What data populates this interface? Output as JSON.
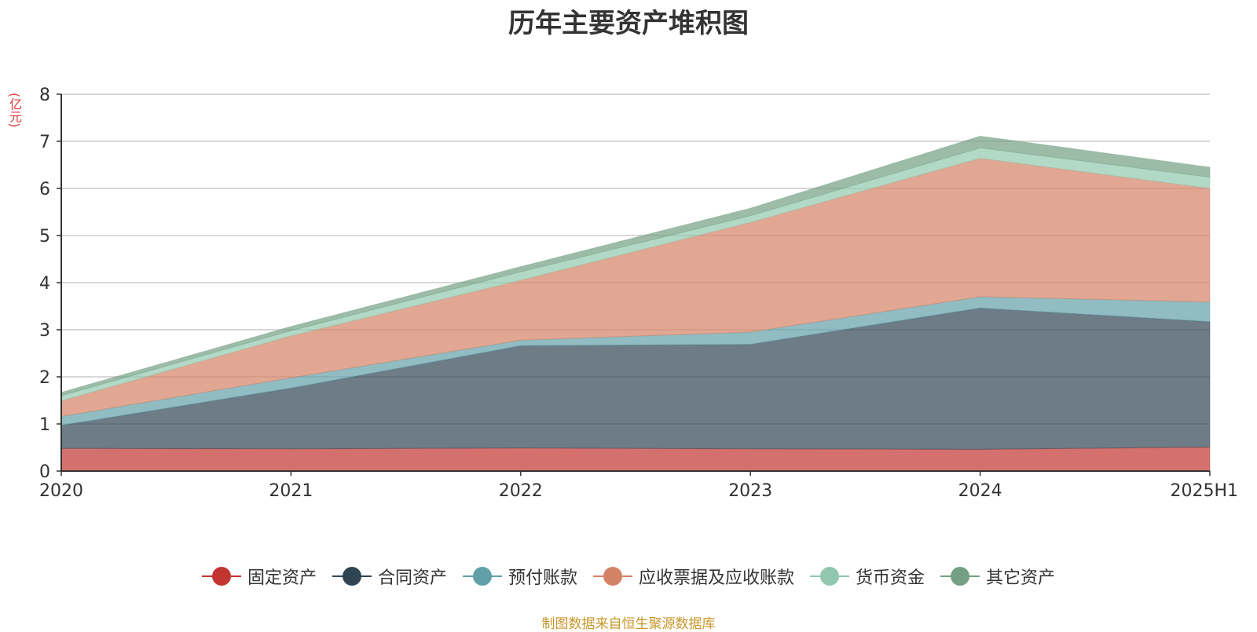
{
  "chart_data": {
    "type": "area",
    "stacked": true,
    "title": "历年主要资产堆积图",
    "unit_label": "(亿元)",
    "categories": [
      "2020",
      "2021",
      "2022",
      "2023",
      "2024",
      "2025H1"
    ],
    "ylim": [
      0,
      8
    ],
    "yticks": [
      "0",
      "1",
      "2",
      "3",
      "4",
      "5",
      "6",
      "7",
      "8"
    ],
    "grid": true,
    "legend_position": "bottom",
    "series": [
      {
        "name": "固定资产",
        "color": "#c23531",
        "values": [
          0.48,
          0.47,
          0.49,
          0.47,
          0.46,
          0.51
        ]
      },
      {
        "name": "合同资产",
        "color": "#2f4554",
        "values": [
          0.49,
          1.29,
          2.17,
          2.22,
          3.0,
          2.66
        ]
      },
      {
        "name": "预付账款",
        "color": "#61a0a8",
        "values": [
          0.19,
          0.22,
          0.12,
          0.26,
          0.24,
          0.42
        ]
      },
      {
        "name": "应收票据及应收账款",
        "color": "#d48265",
        "values": [
          0.33,
          0.89,
          1.27,
          2.33,
          2.94,
          2.41
        ]
      },
      {
        "name": "货币资金",
        "color": "#91c7ae",
        "values": [
          0.11,
          0.11,
          0.18,
          0.14,
          0.22,
          0.24
        ]
      },
      {
        "name": "其它资产",
        "color": "#749f83",
        "values": [
          0.07,
          0.09,
          0.11,
          0.16,
          0.25,
          0.21
        ]
      }
    ]
  },
  "footer": {
    "source": "制图数据来自恒生聚源数据库"
  }
}
